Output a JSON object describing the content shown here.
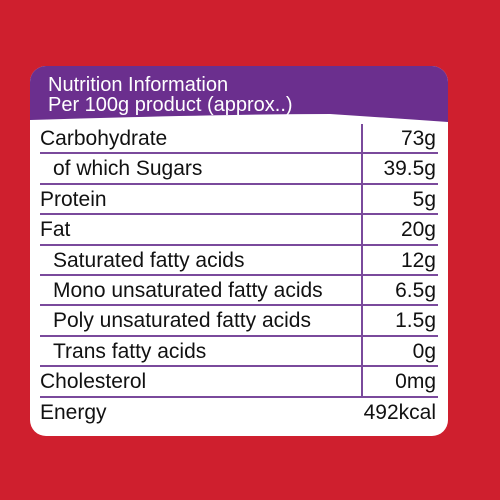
{
  "colors": {
    "background": "#cf1f2e",
    "panel": "#ffffff",
    "header_band": "#6b2f8e",
    "rule": "#7a4a9c"
  },
  "header": {
    "title": "Nutrition Information",
    "subtitle": "Per 100g product (approx..)"
  },
  "rows": [
    {
      "label": "Carbohydrate",
      "value": "73g"
    },
    {
      "label": "of which Sugars",
      "value": "39.5g"
    },
    {
      "label": "Protein",
      "value": "5g"
    },
    {
      "label": "Fat",
      "value": "20g"
    },
    {
      "label": "Saturated fatty acids",
      "value": "12g"
    },
    {
      "label": "Mono unsaturated fatty acids",
      "value": "6.5g"
    },
    {
      "label": "Poly unsaturated fatty acids",
      "value": "1.5g"
    },
    {
      "label": "Trans fatty acids",
      "value": "0g"
    },
    {
      "label": "Cholesterol",
      "value": "0mg"
    },
    {
      "label": "Energy",
      "value": "492kcal"
    }
  ]
}
